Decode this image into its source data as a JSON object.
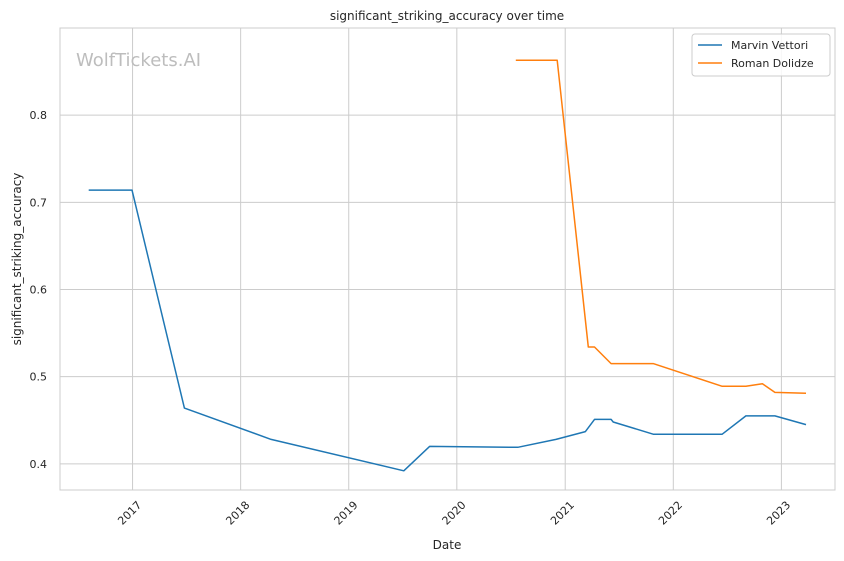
{
  "watermark": "WolfTickets.AI",
  "chart_data": {
    "type": "line",
    "title": "significant_striking_accuracy over time",
    "xlabel": "Date",
    "ylabel": "significant_striking_accuracy",
    "x_type": "date",
    "xlim": [
      "2016-05-01",
      "2023-07-01"
    ],
    "ylim": [
      0.37,
      0.9
    ],
    "x_ticks": [
      "2017",
      "2018",
      "2019",
      "2020",
      "2021",
      "2022",
      "2023"
    ],
    "y_ticks": [
      "0.4",
      "0.5",
      "0.6",
      "0.7",
      "0.8"
    ],
    "grid": true,
    "legend_position": "top-right",
    "series": [
      {
        "name": "Marvin Vettori",
        "color": "#1f77b4",
        "points": [
          [
            "2016-08-06",
            0.714
          ],
          [
            "2016-12-30",
            0.714
          ],
          [
            "2017-06-25",
            0.464
          ],
          [
            "2018-04-14",
            0.428
          ],
          [
            "2019-07-06",
            0.392
          ],
          [
            "2019-10-01",
            0.42
          ],
          [
            "2020-07-25",
            0.419
          ],
          [
            "2020-12-01",
            0.428
          ],
          [
            "2021-03-10",
            0.437
          ],
          [
            "2021-04-10",
            0.451
          ],
          [
            "2021-06-05",
            0.451
          ],
          [
            "2021-06-12",
            0.448
          ],
          [
            "2021-10-25",
            0.434
          ],
          [
            "2022-06-15",
            0.434
          ],
          [
            "2022-09-03",
            0.455
          ],
          [
            "2022-12-10",
            0.455
          ],
          [
            "2023-03-25",
            0.445
          ]
        ]
      },
      {
        "name": "Roman Dolidze",
        "color": "#ff7f0e",
        "points": [
          [
            "2020-07-18",
            0.863
          ],
          [
            "2020-12-05",
            0.863
          ],
          [
            "2021-03-20",
            0.534
          ],
          [
            "2021-04-10",
            0.534
          ],
          [
            "2021-06-05",
            0.515
          ],
          [
            "2021-10-25",
            0.515
          ],
          [
            "2022-06-15",
            0.489
          ],
          [
            "2022-09-03",
            0.489
          ],
          [
            "2022-10-29",
            0.492
          ],
          [
            "2022-12-10",
            0.482
          ],
          [
            "2023-03-25",
            0.481
          ]
        ]
      }
    ]
  }
}
